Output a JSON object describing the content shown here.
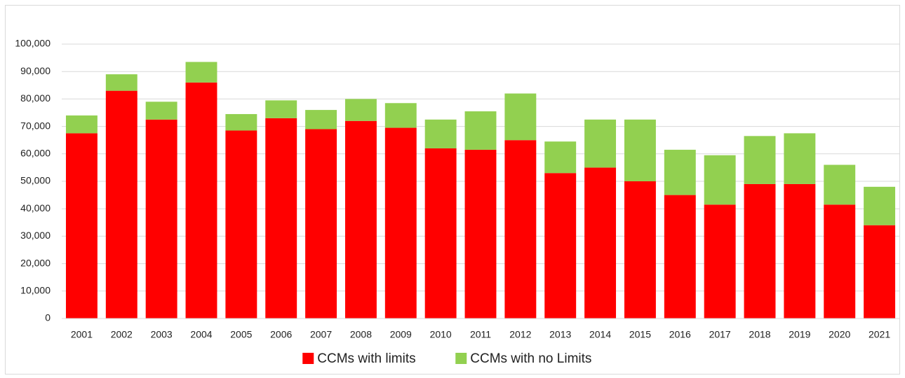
{
  "chart_data": {
    "type": "stacked_bar",
    "categories": [
      "2001",
      "2002",
      "2003",
      "2004",
      "2005",
      "2006",
      "2007",
      "2008",
      "2009",
      "2010",
      "2011",
      "2012",
      "2013",
      "2014",
      "2015",
      "2016",
      "2017",
      "2018",
      "2019",
      "2020",
      "2021"
    ],
    "series": [
      {
        "name": "CCMs with limits",
        "color": "#ff0000",
        "values": [
          67500,
          83000,
          72500,
          86000,
          68500,
          73000,
          69000,
          72000,
          69500,
          62000,
          61500,
          65000,
          53000,
          55000,
          50000,
          45000,
          41500,
          49000,
          49000,
          41500,
          34000
        ]
      },
      {
        "name": "CCMs with no Limits",
        "color": "#92d050",
        "values": [
          6500,
          6000,
          6500,
          7500,
          6000,
          6500,
          7000,
          8000,
          9000,
          10500,
          14000,
          17000,
          11500,
          17500,
          22500,
          16500,
          18000,
          17500,
          18500,
          14500,
          14000
        ]
      }
    ],
    "ylim": [
      0,
      100000
    ],
    "yticks": [
      0,
      {
        "value": 10000,
        "label": "10,000"
      },
      {
        "value": 20000,
        "label": "20,000"
      },
      {
        "value": 30000,
        "label": "30,000"
      },
      {
        "value": 40000,
        "label": "40,000"
      },
      {
        "value": 50000,
        "label": "50,000"
      },
      {
        "value": 60000,
        "label": "60,000"
      },
      {
        "value": 70000,
        "label": "70,000"
      },
      {
        "value": 80000,
        "label": "80,000"
      },
      {
        "value": 90000,
        "label": "90,000"
      },
      {
        "value": 100000,
        "label": "100,000"
      }
    ],
    "grid": true,
    "legend": "bottom"
  }
}
